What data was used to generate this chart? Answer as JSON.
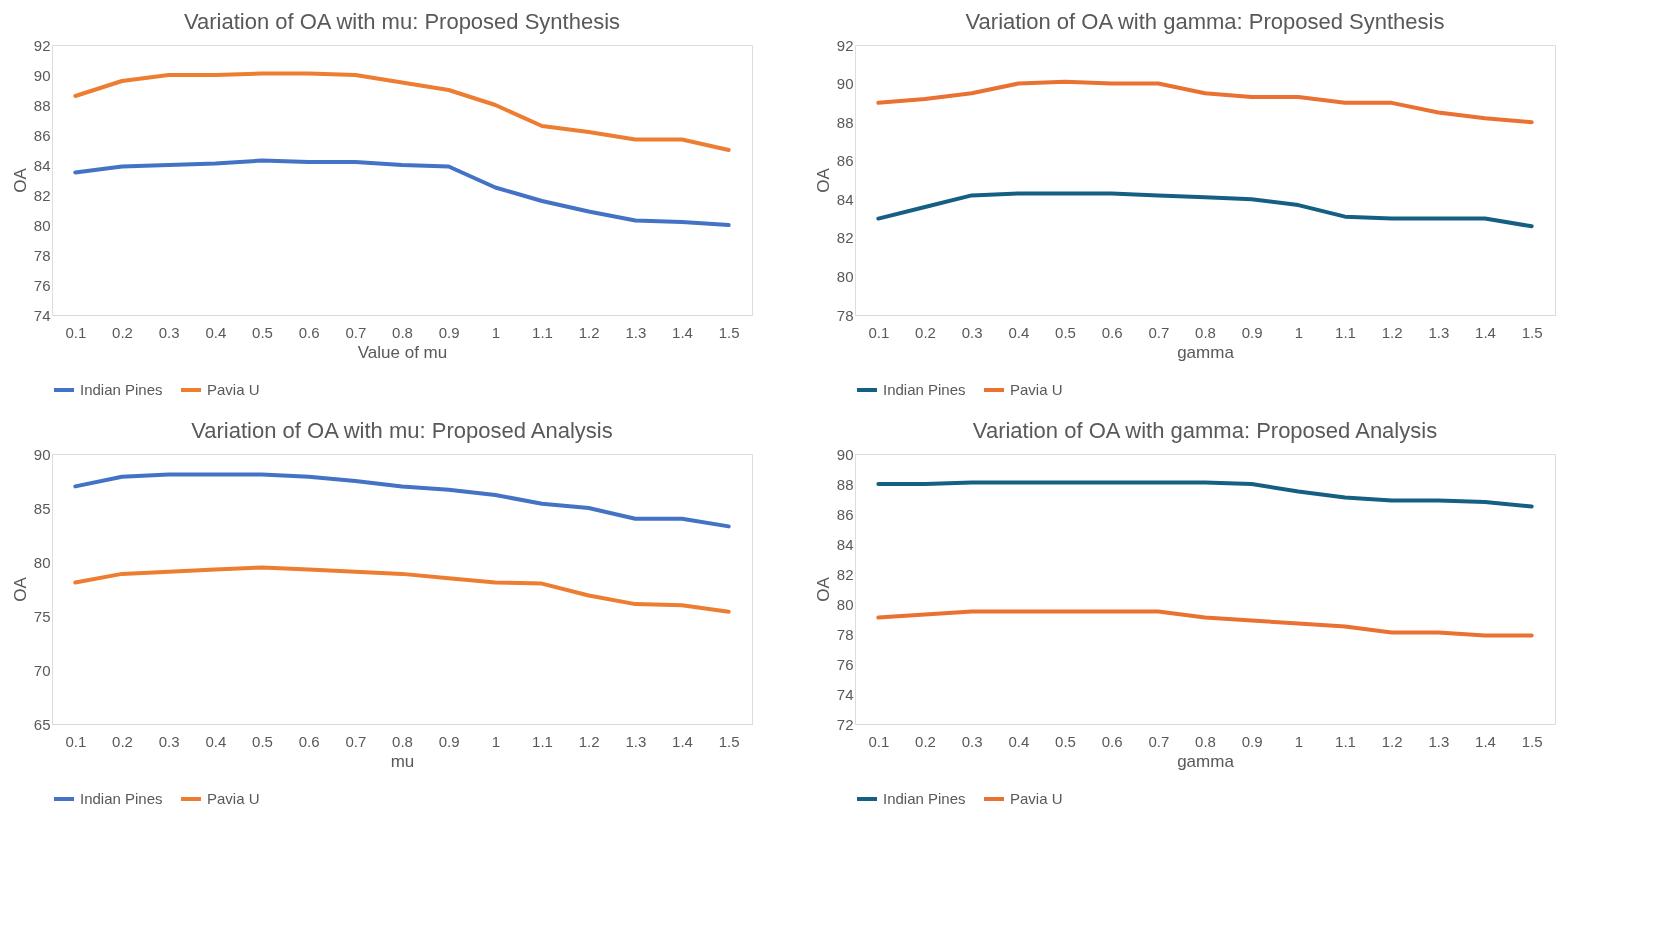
{
  "chart_data": [
    {
      "type": "line",
      "title": "Variation of OA with mu: Proposed Synthesis",
      "xlabel": "Value of mu",
      "ylabel": "OA",
      "categories": [
        "0.1",
        "0.2",
        "0.3",
        "0.4",
        "0.5",
        "0.6",
        "0.7",
        "0.8",
        "0.9",
        "1",
        "1.1",
        "1.2",
        "1.3",
        "1.4",
        "1.5"
      ],
      "ylim": [
        74,
        92
      ],
      "yticks": [
        74,
        76,
        78,
        80,
        82,
        84,
        86,
        88,
        90,
        92
      ],
      "grid": false,
      "legend": "bottom",
      "series": [
        {
          "name": "Indian Pines",
          "color": "#4472c4",
          "values": [
            83.5,
            83.9,
            84.0,
            84.1,
            84.3,
            84.2,
            84.2,
            84.0,
            83.9,
            82.5,
            81.6,
            80.9,
            80.3,
            80.2,
            80.0
          ]
        },
        {
          "name": "Pavia U",
          "color": "#ed7d31",
          "values": [
            88.6,
            89.6,
            90.0,
            90.0,
            90.1,
            90.1,
            90.0,
            89.5,
            89.0,
            88.0,
            86.6,
            86.2,
            85.7,
            85.7,
            85.0
          ]
        }
      ]
    },
    {
      "type": "line",
      "title": "Variation of OA with gamma: Proposed Synthesis",
      "xlabel": "gamma",
      "ylabel": "OA",
      "categories": [
        "0.1",
        "0.2",
        "0.3",
        "0.4",
        "0.5",
        "0.6",
        "0.7",
        "0.8",
        "0.9",
        "1",
        "1.1",
        "1.2",
        "1.3",
        "1.4",
        "1.5"
      ],
      "ylim": [
        78,
        92
      ],
      "yticks": [
        78,
        80,
        82,
        84,
        86,
        88,
        90,
        92
      ],
      "grid": false,
      "legend": "bottom",
      "series": [
        {
          "name": "Indian Pines",
          "color": "#156082",
          "values": [
            83.0,
            83.6,
            84.2,
            84.3,
            84.3,
            84.3,
            84.2,
            84.1,
            84.0,
            83.7,
            83.1,
            83.0,
            83.0,
            83.0,
            82.6
          ]
        },
        {
          "name": "Pavia U",
          "color": "#e97132",
          "values": [
            89.0,
            89.2,
            89.5,
            90.0,
            90.1,
            90.0,
            90.0,
            89.5,
            89.3,
            89.3,
            89.0,
            89.0,
            88.5,
            88.2,
            88.0
          ]
        }
      ]
    },
    {
      "type": "line",
      "title": "Variation of OA with mu: Proposed Analysis",
      "xlabel": "mu",
      "ylabel": "OA",
      "categories": [
        "0.1",
        "0.2",
        "0.3",
        "0.4",
        "0.5",
        "0.6",
        "0.7",
        "0.8",
        "0.9",
        "1",
        "1.1",
        "1.2",
        "1.3",
        "1.4",
        "1.5"
      ],
      "ylim": [
        65,
        90
      ],
      "yticks": [
        65,
        70,
        75,
        80,
        85,
        90
      ],
      "grid": false,
      "legend": "bottom",
      "series": [
        {
          "name": "Indian Pines",
          "color": "#4472c4",
          "values": [
            87.0,
            87.9,
            88.1,
            88.1,
            88.1,
            87.9,
            87.5,
            87.0,
            86.7,
            86.2,
            85.4,
            85.0,
            84.0,
            84.0,
            83.3
          ]
        },
        {
          "name": "Pavia U",
          "color": "#ed7d31",
          "values": [
            78.1,
            78.9,
            79.1,
            79.3,
            79.5,
            79.3,
            79.1,
            78.9,
            78.5,
            78.1,
            78.0,
            76.9,
            76.1,
            76.0,
            75.4
          ]
        }
      ]
    },
    {
      "type": "line",
      "title": "Variation of OA with gamma: Proposed Analysis",
      "xlabel": "gamma",
      "ylabel": "OA",
      "categories": [
        "0.1",
        "0.2",
        "0.3",
        "0.4",
        "0.5",
        "0.6",
        "0.7",
        "0.8",
        "0.9",
        "1",
        "1.1",
        "1.2",
        "1.3",
        "1.4",
        "1.5"
      ],
      "ylim": [
        72,
        90
      ],
      "yticks": [
        72,
        74,
        76,
        78,
        80,
        82,
        84,
        86,
        88,
        90
      ],
      "grid": false,
      "legend": "bottom",
      "series": [
        {
          "name": "Indian Pines",
          "color": "#156082",
          "values": [
            88.0,
            88.0,
            88.1,
            88.1,
            88.1,
            88.1,
            88.1,
            88.1,
            88.0,
            87.5,
            87.1,
            86.9,
            86.9,
            86.8,
            86.5
          ]
        },
        {
          "name": "Pavia U",
          "color": "#e97132",
          "values": [
            79.1,
            79.3,
            79.5,
            79.5,
            79.5,
            79.5,
            79.5,
            79.1,
            78.9,
            78.7,
            78.5,
            78.1,
            78.1,
            77.9,
            77.9
          ]
        }
      ]
    }
  ]
}
